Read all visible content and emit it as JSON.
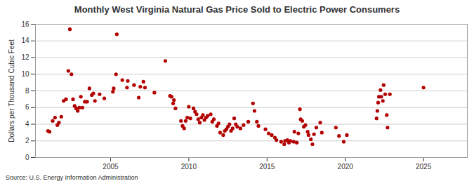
{
  "chart_data": {
    "type": "scatter",
    "title": "Monthly West Virginia Natural Gas Price Sold to Electric Power Consumers",
    "y_label": "Dollars per Thousand Cubic Feet",
    "source": "Source: U.S. Energy Information Administration",
    "color": "#b30000",
    "marker": "circle",
    "grid": true,
    "xlim": [
      2000.2,
      2027.8
    ],
    "xticks": [
      2005,
      2010,
      2015,
      2020,
      2025
    ],
    "ylim": [
      0,
      16
    ],
    "yticks": [
      0,
      2,
      4,
      6,
      8,
      10,
      12,
      14,
      16
    ],
    "x": [
      2001.0,
      2001.1,
      2001.3,
      2001.45,
      2001.6,
      2001.7,
      2001.85,
      2002.0,
      2002.15,
      2002.3,
      2002.4,
      2002.5,
      2002.6,
      2002.7,
      2002.8,
      2002.9,
      2003.0,
      2003.1,
      2003.2,
      2003.35,
      2003.5,
      2003.65,
      2003.8,
      2003.9,
      2004.0,
      2004.3,
      2004.6,
      2005.15,
      2005.2,
      2005.35,
      2005.4,
      2005.75,
      2006.05,
      2006.1,
      2006.5,
      2006.8,
      2006.9,
      2007.1,
      2007.2,
      2007.8,
      2008.5,
      2008.8,
      2008.9,
      2009.0,
      2009.05,
      2009.15,
      2009.5,
      2009.6,
      2009.7,
      2009.8,
      2009.9,
      2010.0,
      2010.1,
      2010.3,
      2010.4,
      2010.5,
      2010.6,
      2010.7,
      2010.8,
      2010.9,
      2011.0,
      2011.1,
      2011.2,
      2011.4,
      2011.5,
      2011.6,
      2011.8,
      2011.9,
      2012.0,
      2012.2,
      2012.3,
      2012.4,
      2012.5,
      2012.6,
      2012.7,
      2012.8,
      2012.9,
      2013.0,
      2013.1,
      2013.3,
      2013.5,
      2013.8,
      2014.1,
      2014.2,
      2014.35,
      2014.45,
      2014.9,
      2015.1,
      2015.3,
      2015.5,
      2015.6,
      2015.9,
      2016.1,
      2016.15,
      2016.3,
      2016.4,
      2016.5,
      2016.7,
      2016.75,
      2016.9,
      2017.0,
      2017.1,
      2017.15,
      2017.25,
      2017.35,
      2017.45,
      2017.6,
      2017.65,
      2017.8,
      2017.9,
      2018.0,
      2018.15,
      2018.4,
      2018.5,
      2019.4,
      2019.6,
      2019.9,
      2020.1,
      2022.0,
      2022.05,
      2022.1,
      2022.15,
      2022.25,
      2022.3,
      2022.4,
      2022.45,
      2022.55,
      2022.65,
      2022.7,
      2022.85,
      2025.0
    ],
    "values": [
      3.2,
      3.1,
      4.4,
      4.8,
      3.9,
      4.2,
      4.9,
      6.8,
      7.0,
      10.4,
      15.4,
      10.0,
      7.0,
      6.2,
      5.9,
      5.6,
      6.0,
      7.3,
      6.0,
      6.7,
      6.7,
      8.3,
      7.5,
      7.7,
      6.8,
      7.6,
      7.1,
      7.9,
      8.3,
      10.0,
      14.8,
      9.3,
      8.4,
      9.2,
      8.7,
      7.2,
      8.5,
      9.1,
      8.4,
      7.8,
      11.6,
      7.4,
      7.3,
      6.5,
      6.9,
      5.9,
      4.4,
      3.8,
      3.5,
      4.4,
      4.8,
      6.1,
      4.7,
      5.9,
      5.5,
      5.2,
      4.6,
      4.2,
      4.8,
      5.1,
      4.5,
      4.8,
      5.0,
      5.2,
      4.3,
      4.6,
      3.8,
      4.1,
      3.0,
      2.7,
      3.2,
      3.4,
      3.7,
      4.0,
      3.2,
      3.5,
      4.7,
      4.0,
      3.7,
      3.5,
      3.9,
      4.3,
      6.5,
      5.6,
      4.3,
      3.8,
      3.4,
      2.9,
      2.7,
      2.4,
      2.1,
      1.9,
      1.6,
      2.0,
      2.1,
      1.8,
      2.0,
      1.9,
      3.1,
      1.8,
      2.9,
      5.8,
      4.6,
      4.4,
      3.7,
      3.9,
      3.1,
      2.7,
      2.2,
      1.6,
      2.8,
      3.6,
      4.2,
      3.0,
      3.6,
      2.6,
      1.9,
      2.7,
      4.7,
      5.6,
      6.6,
      7.3,
      8.1,
      7.3,
      6.8,
      8.7,
      7.6,
      5.1,
      3.6,
      7.6,
      8.4
    ]
  }
}
